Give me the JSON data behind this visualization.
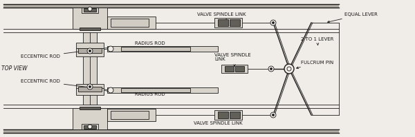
{
  "bg_color": "#f0ede8",
  "line_color": "#1a1a1a",
  "fill_light": "#d8d4cc",
  "fill_mid": "#b0aca4",
  "fill_dark": "#606058",
  "text_color": "#1a1a1a",
  "title": "TOP VIEW",
  "labels": {
    "eccentric_rod_top": "ECCENTRIC ROD",
    "eccentric_rod_bot": "ECCENTRIC ROD",
    "radius_rod_top": "RADIUS ROD",
    "radius_rod_bot": "RADIUS ROD",
    "valve_spindle_top": "VALVE SPINDLE LINK",
    "valve_spindle_mid": "VALVE SPINDLE\nLINK",
    "valve_spindle_bot": "VALVE SPINDLE LINK",
    "equal_lever": "EQUAL LEVER",
    "fulcrum_pin": "FULCRUM PIN",
    "lever_2to1": "2 TO 1 LEVER"
  },
  "figsize": [
    6.0,
    1.99
  ],
  "dpi": 100
}
